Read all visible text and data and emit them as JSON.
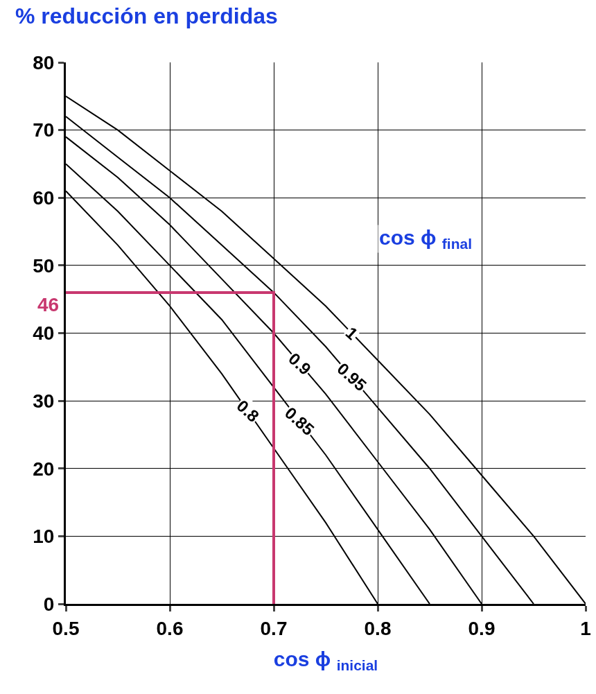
{
  "chart_data": {
    "type": "line",
    "ylabel": "% reducción en perdidas",
    "xlabel": "cos ϕ $_{inicial}$",
    "legend_title": "cos ϕ $_{final}$",
    "xlim": [
      0.5,
      1
    ],
    "xticks": [
      0.5,
      0.6,
      0.7,
      0.8,
      0.9,
      1
    ],
    "ylim": [
      0,
      80
    ],
    "yticks": [
      0,
      10,
      20,
      30,
      40,
      50,
      60,
      70,
      80
    ],
    "grid": true,
    "legend": false,
    "marker": "none",
    "line_style": "solid",
    "series": [
      {
        "name": "1",
        "color": "#000000",
        "x": [
          0.5,
          0.55,
          0.6,
          0.65,
          0.7,
          0.75,
          0.8,
          0.85,
          0.9,
          0.95,
          1
        ],
        "values": [
          75,
          70,
          64,
          58,
          51,
          44,
          36,
          28,
          19,
          10,
          0
        ]
      },
      {
        "name": "0.95",
        "color": "#000000",
        "x": [
          0.5,
          0.55,
          0.6,
          0.65,
          0.7,
          0.75,
          0.8,
          0.85,
          0.9,
          0.95
        ],
        "values": [
          72,
          66,
          60,
          53,
          46,
          38,
          29,
          20,
          10,
          0
        ]
      },
      {
        "name": "0.9",
        "color": "#000000",
        "x": [
          0.5,
          0.55,
          0.6,
          0.65,
          0.7,
          0.75,
          0.8,
          0.85,
          0.9
        ],
        "values": [
          69,
          63,
          56,
          48,
          40,
          31,
          21,
          11,
          0
        ]
      },
      {
        "name": "0.85",
        "color": "#000000",
        "x": [
          0.5,
          0.55,
          0.6,
          0.65,
          0.7,
          0.75,
          0.8,
          0.85
        ],
        "values": [
          65,
          58,
          50,
          42,
          32,
          22,
          11,
          0
        ]
      },
      {
        "name": "0.8",
        "color": "#000000",
        "x": [
          0.5,
          0.55,
          0.6,
          0.65,
          0.7,
          0.75,
          0.8
        ],
        "values": [
          61,
          53,
          44,
          34,
          23,
          12,
          0
        ]
      },
      {
        "color": "#c8386f",
        "x": [
          0.5,
          0.7,
          0.7
        ],
        "values": [
          46,
          46,
          0
        ]
      }
    ],
    "annotations": [
      {
        "text": "46",
        "x": 0.5,
        "y": 46
      }
    ]
  }
}
